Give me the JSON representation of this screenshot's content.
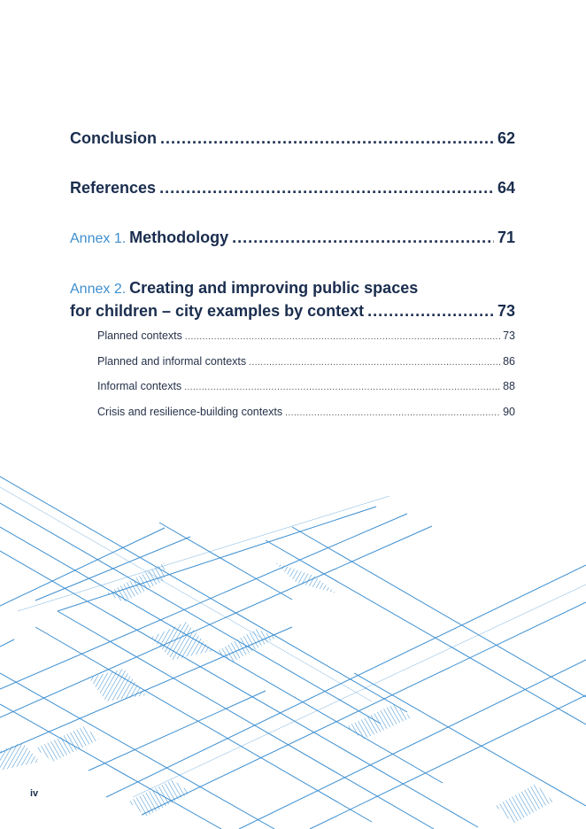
{
  "toc": {
    "conclusion": {
      "title": "Conclusion",
      "page": "62"
    },
    "references": {
      "title": "References",
      "page": "64"
    },
    "annex1": {
      "label": "Annex 1.",
      "title": "Methodology",
      "page": "71"
    },
    "annex2": {
      "label": "Annex 2.",
      "title_line1": "Creating and improving public spaces",
      "title_line2": "for children – city examples by context",
      "page": "73",
      "subsections": [
        {
          "title": "Planned contexts",
          "page": "73"
        },
        {
          "title": "Planned and informal contexts",
          "page": "86"
        },
        {
          "title": "Informal contexts",
          "page": "88"
        },
        {
          "title": "Crisis and resilience-building contexts",
          "page": "90"
        }
      ]
    }
  },
  "footer": {
    "page_number": "iv"
  },
  "colors": {
    "navy": "#1a2d4e",
    "accent_blue": "#3d8fd0"
  },
  "decoration": {
    "icon": "blue-line-grid-graphic"
  }
}
